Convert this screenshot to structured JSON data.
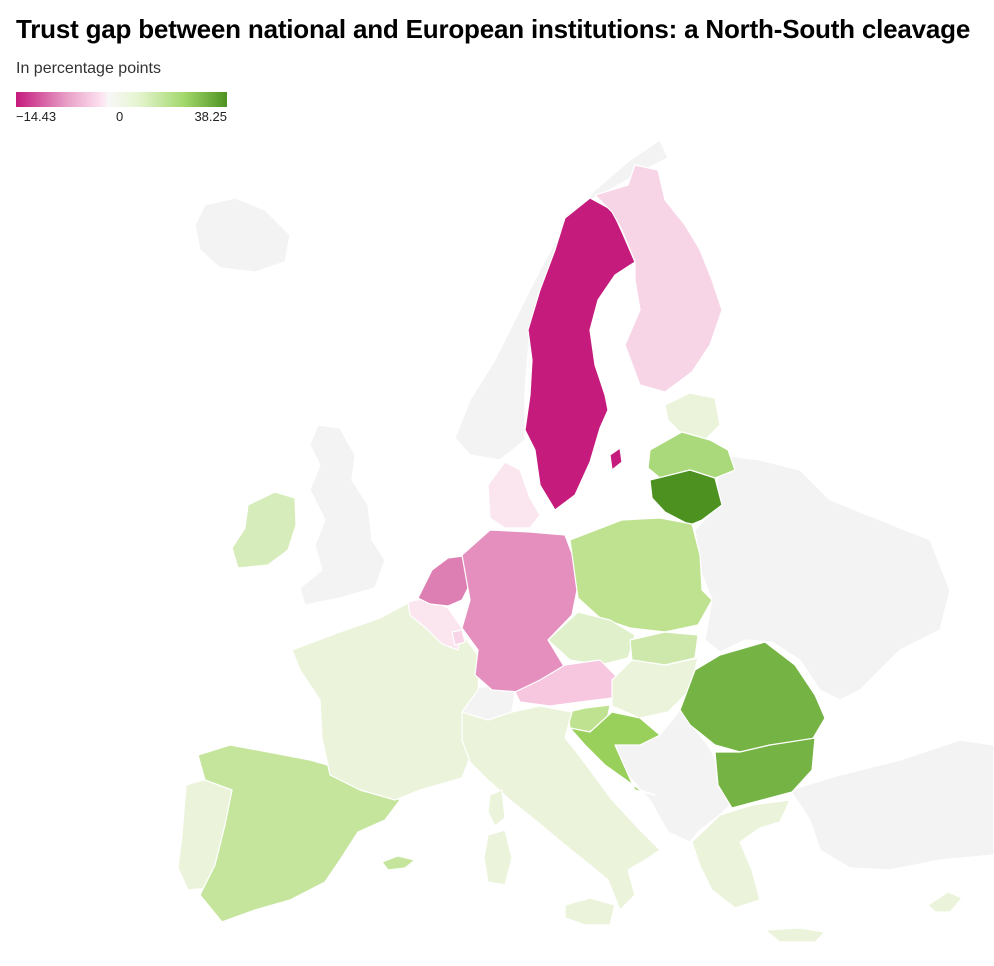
{
  "title": "Trust gap between national and European institutions: a North-South cleavage",
  "subtitle": "In percentage points",
  "legend": {
    "min_label": "−14.43",
    "zero_label": "0",
    "max_label": "38.25",
    "min_value": -14.43,
    "max_value": 38.25,
    "colors": [
      "#c51b7d",
      "#e9a3c9",
      "#fde0ef",
      "#f7f7f7",
      "#e6f5d0",
      "#a1d76a",
      "#4d9221"
    ]
  },
  "colors": {
    "no_data": "#f3f3f3",
    "strong_negative": "#c51b7d",
    "negative": "#de7fb4",
    "mild_negative": "#e48fbe",
    "light_negative": "#f7d4e6",
    "faint_negative": "#fbe6f0",
    "neutral_positive": "#ebf4db",
    "light_positive": "#d7ecbb",
    "medium_positive": "#bfe290",
    "positive": "#99d05c",
    "strong_positive": "#75b444",
    "dark_positive": "#4d9221"
  }
}
